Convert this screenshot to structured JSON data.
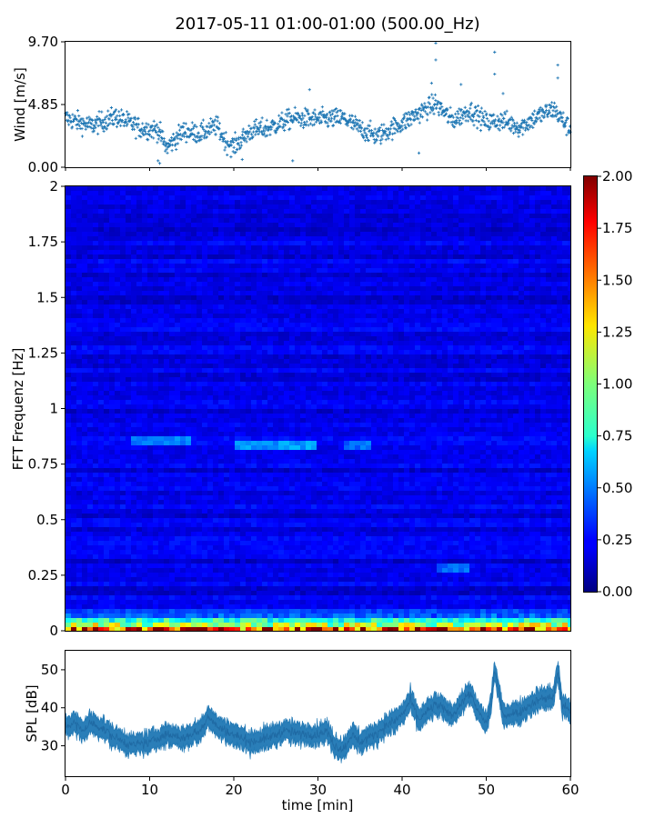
{
  "figure": {
    "title": "2017-05-11 01:00-01:00 (500.00_Hz)"
  },
  "colors": {
    "series": "#1f77b4",
    "axis": "#000000",
    "background": "#ffffff",
    "colormap": "jet"
  },
  "chart_data": [
    {
      "type": "scatter",
      "title": "2017-05-11 01:00-01:00 (500.00_Hz)",
      "xlabel": "",
      "ylabel": "Wind [m/s]",
      "xlim": [
        0,
        60
      ],
      "ylim": [
        0,
        9.7
      ],
      "y_ticks": [
        "0.00",
        "4.85",
        "9.70"
      ],
      "marker": "+",
      "x_shared_with": "time [min]",
      "trend": {
        "x": [
          0,
          3,
          6,
          9,
          11,
          12,
          14,
          16,
          18,
          19,
          20,
          22,
          24,
          27,
          30,
          33,
          35,
          37,
          40,
          42,
          44,
          46,
          48,
          50,
          52,
          54,
          56,
          58,
          60
        ],
        "y": [
          3.8,
          3.2,
          3.9,
          3.0,
          2.9,
          1.5,
          2.8,
          2.6,
          3.2,
          2.0,
          1.6,
          2.8,
          3.0,
          3.8,
          3.7,
          3.8,
          3.0,
          2.4,
          3.4,
          4.2,
          4.9,
          3.6,
          4.4,
          3.5,
          3.6,
          3.1,
          3.9,
          4.5,
          2.9
        ]
      },
      "outliers": [
        {
          "x": 44.0,
          "y": 9.6
        },
        {
          "x": 44.0,
          "y": 8.3
        },
        {
          "x": 51.0,
          "y": 8.9
        },
        {
          "x": 51.0,
          "y": 7.2
        },
        {
          "x": 58.5,
          "y": 7.9
        },
        {
          "x": 58.5,
          "y": 6.9
        },
        {
          "x": 47.0,
          "y": 6.4
        },
        {
          "x": 43.5,
          "y": 6.5
        },
        {
          "x": 29.0,
          "y": 6.0
        },
        {
          "x": 52.0,
          "y": 5.7
        },
        {
          "x": 11.0,
          "y": 0.5
        },
        {
          "x": 11.2,
          "y": 0.3
        },
        {
          "x": 21.0,
          "y": 0.6
        },
        {
          "x": 27.0,
          "y": 0.5
        },
        {
          "x": 42.0,
          "y": 1.1
        }
      ]
    },
    {
      "type": "heatmap",
      "xlabel": "",
      "ylabel": "FFT Frequenz [Hz]",
      "xlim": [
        0,
        60
      ],
      "ylim": [
        0,
        2
      ],
      "y_ticks": [
        "0",
        "0.25",
        "0.5",
        "0.75",
        "1",
        "1.25",
        "1.5",
        "1.75",
        "2"
      ],
      "colormap": "jet",
      "colorbar": {
        "range": [
          0,
          2
        ],
        "ticks": [
          "0.00",
          "0.25",
          "0.50",
          "0.75",
          "1.00",
          "1.25",
          "1.50",
          "1.75",
          "2.00"
        ]
      },
      "background_level": 0.18,
      "low_frequency_band": {
        "up_to_hz": 0.15,
        "level_near_zero_hz": 2.0
      },
      "features": [
        {
          "x_range": [
            8,
            15
          ],
          "freq_hz": 0.85,
          "level": 0.5
        },
        {
          "x_range": [
            20,
            30
          ],
          "freq_hz": 0.84,
          "level": 0.55
        },
        {
          "x_range": [
            33,
            36
          ],
          "freq_hz": 0.83,
          "level": 0.45
        },
        {
          "x_range": [
            44,
            48
          ],
          "freq_hz": 0.29,
          "level": 0.45
        }
      ]
    },
    {
      "type": "area",
      "xlabel": "time [min]",
      "ylabel": "SPL [dB]",
      "xlim": [
        0,
        60
      ],
      "ylim": [
        22,
        55
      ],
      "x_ticks": [
        "0",
        "10",
        "20",
        "30",
        "40",
        "50",
        "60"
      ],
      "y_ticks": [
        "30",
        "40",
        "50"
      ],
      "band_width_db": 4,
      "center": {
        "x": [
          0,
          1,
          2,
          3,
          4,
          6,
          8,
          10,
          12,
          14,
          16,
          17,
          18,
          20,
          22,
          24,
          26,
          28,
          30,
          31,
          32,
          33,
          34,
          35,
          36,
          38,
          40,
          41,
          42,
          44,
          46,
          48,
          49,
          50,
          50.5,
          51,
          52,
          54,
          56,
          58,
          58.5,
          59,
          60
        ],
        "y": [
          35,
          36,
          34,
          36,
          35,
          32,
          30,
          31,
          33,
          32,
          34,
          38,
          35,
          33,
          31,
          32,
          34,
          33,
          33,
          34,
          30,
          29,
          33,
          31,
          32,
          35,
          38,
          42,
          37,
          41,
          38,
          44,
          39,
          36,
          40,
          50,
          38,
          39,
          42,
          43,
          50,
          41,
          39
        ]
      }
    }
  ]
}
